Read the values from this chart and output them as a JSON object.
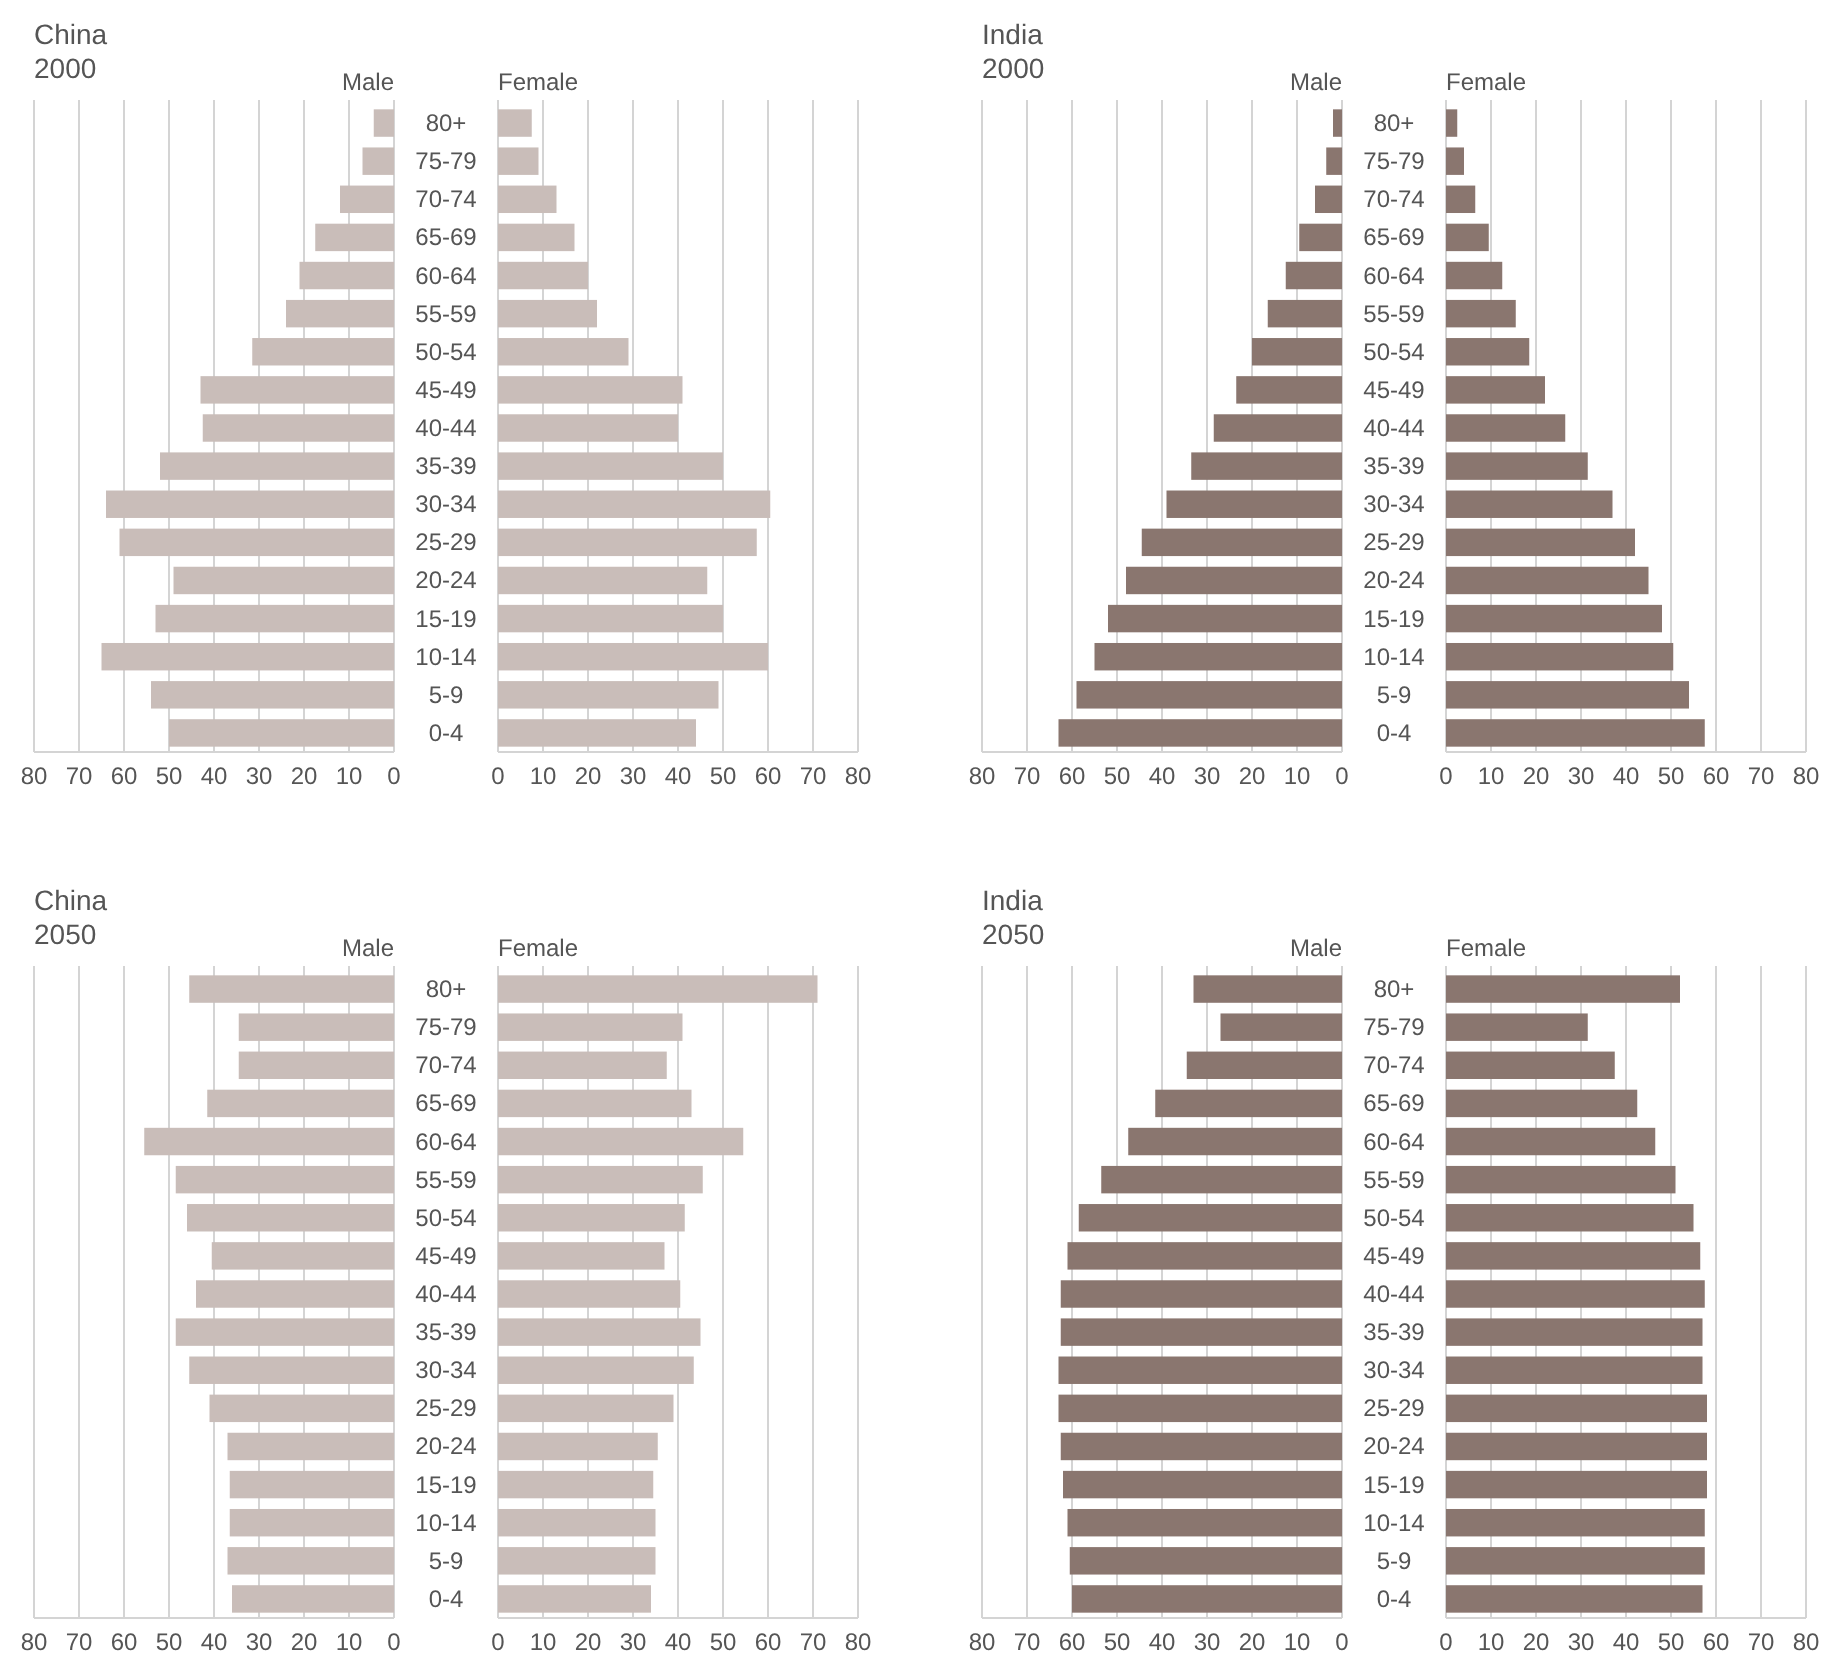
{
  "chart_data": [
    {
      "type": "bar",
      "orientation": "horizontal",
      "title": "China",
      "subtitle": "2000",
      "categories": [
        "80+",
        "75-79",
        "70-74",
        "65-69",
        "60-64",
        "55-59",
        "50-54",
        "45-49",
        "40-44",
        "35-39",
        "30-34",
        "25-29",
        "20-24",
        "15-19",
        "10-14",
        "5-9",
        "0-4"
      ],
      "xlim": [
        80,
        0
      ],
      "xticks": [
        80,
        70,
        60,
        50,
        40,
        30,
        20,
        10,
        0
      ],
      "grid": "x",
      "legend": "top right",
      "series": [
        {
          "name": "Male",
          "color": "#c9bdb9",
          "values": [
            4.5,
            7,
            12,
            17.5,
            21,
            24,
            31.5,
            43,
            42.5,
            52,
            64,
            61,
            49,
            53,
            65,
            54,
            50
          ]
        }
      ]
    },
    {
      "type": "bar",
      "orientation": "horizontal",
      "categories": [
        null,
        null,
        null,
        null,
        null,
        null,
        null,
        null,
        null,
        null,
        null,
        null,
        null,
        null,
        null,
        null,
        null
      ],
      "xlim": [
        0,
        80
      ],
      "xticks": [
        0,
        10,
        20,
        30,
        40,
        50,
        60,
        70,
        80
      ],
      "grid": "x",
      "legend": "top left",
      "tick_labels": "x",
      "series": [
        {
          "name": "Female",
          "color": "#c9bdb9",
          "values": [
            7.5,
            9,
            13,
            17,
            20,
            22,
            29,
            41,
            40,
            50,
            60.5,
            57.5,
            46.5,
            50,
            60,
            49,
            44
          ]
        }
      ]
    },
    {
      "type": "bar",
      "orientation": "horizontal",
      "title": "India",
      "subtitle": "2000",
      "categories": [
        "80+",
        "75-79",
        "70-74",
        "65-69",
        "60-64",
        "55-59",
        "50-54",
        "45-49",
        "40-44",
        "35-39",
        "30-34",
        "25-29",
        "20-24",
        "15-19",
        "10-14",
        "5-9",
        "0-4"
      ],
      "xlim": [
        80,
        0
      ],
      "xticks": [
        80,
        70,
        60,
        50,
        40,
        30,
        20,
        10,
        0
      ],
      "grid": "x",
      "legend": "top right",
      "series": [
        {
          "name": "Male",
          "color": "#8a766f",
          "values": [
            2,
            3.5,
            6,
            9.5,
            12.5,
            16.5,
            20,
            23.5,
            28.5,
            33.5,
            39,
            44.5,
            48,
            52,
            55,
            59,
            63
          ]
        }
      ]
    },
    {
      "type": "bar",
      "orientation": "horizontal",
      "categories": [
        null,
        null,
        null,
        null,
        null,
        null,
        null,
        null,
        null,
        null,
        null,
        null,
        null,
        null,
        null,
        null,
        null
      ],
      "xlim": [
        0,
        80
      ],
      "xticks": [
        0,
        10,
        20,
        30,
        40,
        50,
        60,
        70,
        80
      ],
      "grid": "x",
      "legend": "top left",
      "tick_labels": "x",
      "series": [
        {
          "name": "Female",
          "color": "#8a766f",
          "values": [
            2.5,
            4,
            6.5,
            9.5,
            12.5,
            15.5,
            18.5,
            22,
            26.5,
            31.5,
            37,
            42,
            45,
            48,
            50.5,
            54,
            57.5
          ]
        }
      ]
    },
    {
      "type": "bar",
      "orientation": "horizontal",
      "title": "China",
      "subtitle": "2050",
      "categories": [
        "80+",
        "75-79",
        "70-74",
        "65-69",
        "60-64",
        "55-59",
        "50-54",
        "45-49",
        "40-44",
        "35-39",
        "30-34",
        "25-29",
        "20-24",
        "15-19",
        "10-14",
        "5-9",
        "0-4"
      ],
      "xlim": [
        80,
        0
      ],
      "xticks": [
        80,
        70,
        60,
        50,
        40,
        30,
        20,
        10,
        0
      ],
      "grid": "x",
      "legend": "top right",
      "series": [
        {
          "name": "Male",
          "color": "#c9bdb9",
          "values": [
            45.5,
            34.5,
            34.5,
            41.5,
            55.5,
            48.5,
            46,
            40.5,
            44,
            48.5,
            45.5,
            41,
            37,
            36.5,
            36.5,
            37,
            36
          ]
        }
      ]
    },
    {
      "type": "bar",
      "orientation": "horizontal",
      "categories": [
        null,
        null,
        null,
        null,
        null,
        null,
        null,
        null,
        null,
        null,
        null,
        null,
        null,
        null,
        null,
        null,
        null
      ],
      "xlim": [
        0,
        80
      ],
      "xticks": [
        0,
        10,
        20,
        30,
        40,
        50,
        60,
        70,
        80
      ],
      "grid": "x",
      "legend": "top left",
      "tick_labels": "x",
      "series": [
        {
          "name": "Female",
          "color": "#c9bdb9",
          "values": [
            71,
            41,
            37.5,
            43,
            54.5,
            45.5,
            41.5,
            37,
            40.5,
            45,
            43.5,
            39,
            35.5,
            34.5,
            35,
            35,
            34
          ]
        }
      ]
    },
    {
      "type": "bar",
      "orientation": "horizontal",
      "title": "India",
      "subtitle": "2050",
      "categories": [
        "80+",
        "75-79",
        "70-74",
        "65-69",
        "60-64",
        "55-59",
        "50-54",
        "45-49",
        "40-44",
        "35-39",
        "30-34",
        "25-29",
        "20-24",
        "15-19",
        "10-14",
        "5-9",
        "0-4"
      ],
      "xlim": [
        80,
        0
      ],
      "xticks": [
        80,
        70,
        60,
        50,
        40,
        30,
        20,
        10,
        0
      ],
      "grid": "x",
      "legend": "top right",
      "series": [
        {
          "name": "Male",
          "color": "#8a766f",
          "values": [
            33,
            27,
            34.5,
            41.5,
            47.5,
            53.5,
            58.5,
            61,
            62.5,
            62.5,
            63,
            63,
            62.5,
            62,
            61,
            60.5,
            60
          ]
        }
      ]
    },
    {
      "type": "bar",
      "orientation": "horizontal",
      "categories": [
        null,
        null,
        null,
        null,
        null,
        null,
        null,
        null,
        null,
        null,
        null,
        null,
        null,
        null,
        null,
        null,
        null
      ],
      "xlim": [
        0,
        80
      ],
      "xticks": [
        0,
        10,
        20,
        30,
        40,
        50,
        60,
        70,
        80
      ],
      "grid": "x",
      "legend": "top left",
      "tick_labels": "x",
      "series": [
        {
          "name": "Female",
          "color": "#8a766f",
          "values": [
            52,
            31.5,
            37.5,
            42.5,
            46.5,
            51,
            55,
            56.5,
            57.5,
            57,
            57,
            58,
            58,
            58,
            57.5,
            57.5,
            57
          ]
        }
      ]
    }
  ]
}
